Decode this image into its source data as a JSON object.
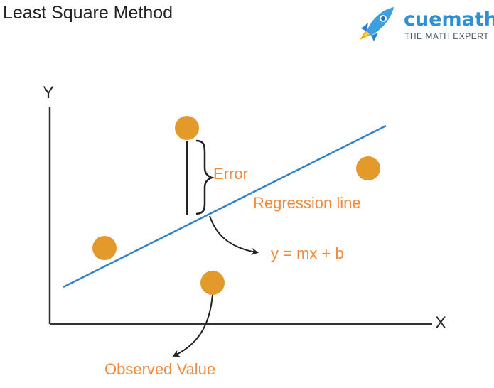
{
  "title": "Least Square Method",
  "brand": {
    "name": "cuemath",
    "tagline": "THE MATH EXPERT",
    "icon": "rocket-icon"
  },
  "axes": {
    "x_label": "X",
    "y_label": "Y"
  },
  "annotations": {
    "error": "Error",
    "regression": "Regression line",
    "equation": "y = mx + b",
    "observed": "Observed Value"
  },
  "colors": {
    "point": "#e39a2a",
    "line": "#3380c1",
    "label": "#f08a3e",
    "axis": "#333333",
    "brand": "#2f8fd0"
  }
}
